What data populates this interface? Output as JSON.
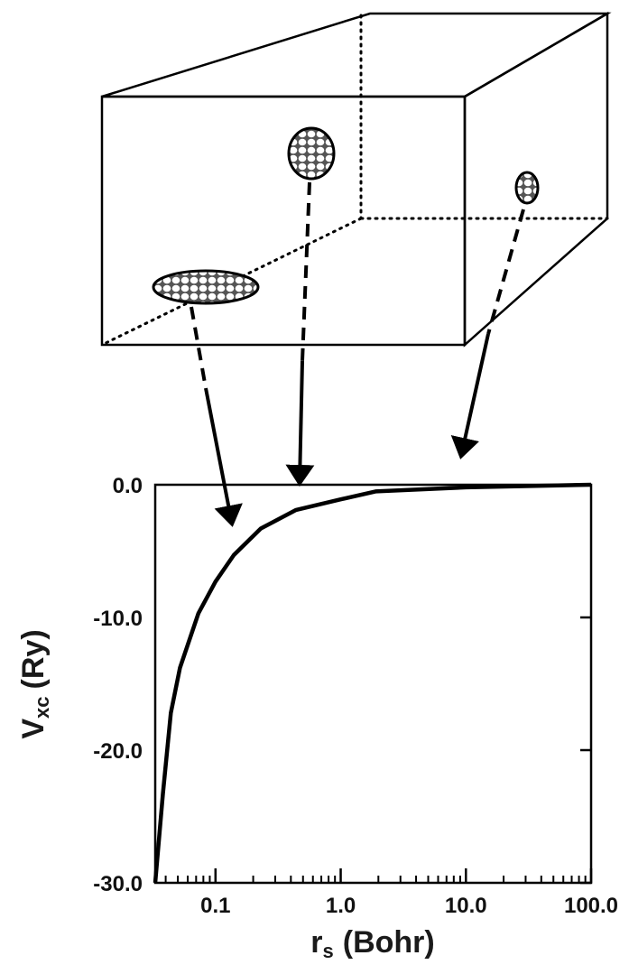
{
  "chart_data": {
    "type": "line",
    "xlabel": {
      "main": "r",
      "sub": "s",
      "unit": "(Bohr)"
    },
    "ylabel": {
      "main": "V",
      "sub": "xc",
      "unit": "(Ry)"
    },
    "x": [
      0.033,
      0.038,
      0.044,
      0.052,
      0.073,
      0.1,
      0.14,
      0.23,
      0.44,
      1.0,
      1.9,
      10,
      100
    ],
    "values": [
      -30,
      -23.3,
      -17.2,
      -13.8,
      -9.7,
      -7.3,
      -5.3,
      -3.3,
      -1.9,
      -1.1,
      -0.5,
      -0.2,
      0
    ],
    "color": "#000000",
    "xscale": "log",
    "xlim": [
      0.033,
      100
    ],
    "ylim": [
      -30,
      0
    ],
    "xticks": [
      0.1,
      {
        "value": 1,
        "label": "1.0"
      },
      {
        "value": 10,
        "label": "10.0"
      },
      {
        "value": 100,
        "label": "100.0"
      }
    ],
    "xminorticks": [
      0.04,
      0.05,
      0.06,
      0.07,
      0.08,
      0.09,
      0.2,
      0.3,
      0.4,
      0.5,
      0.6,
      0.7,
      0.8,
      0.9,
      2,
      3,
      4,
      5,
      6,
      7,
      8,
      9,
      20,
      30,
      40,
      50,
      60,
      70,
      80,
      90
    ],
    "yticks": [
      {
        "value": 0,
        "label": "0.0"
      },
      {
        "value": -10,
        "label": "-10.0"
      },
      {
        "value": -20,
        "label": "-20.0"
      },
      {
        "value": -30,
        "label": "-30.0"
      }
    ]
  }
}
